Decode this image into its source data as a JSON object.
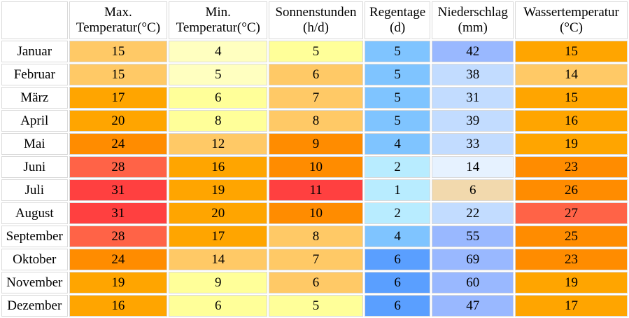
{
  "chart_data": {
    "type": "table",
    "columns": [
      {
        "key": "max_temp",
        "line1": "Max.",
        "line2": "Temperatur(°C)"
      },
      {
        "key": "min_temp",
        "line1": "Min.",
        "line2": "Temperatur(°C)"
      },
      {
        "key": "sun",
        "line1": "Sonnenstunden",
        "line2": "(h/d)"
      },
      {
        "key": "rain_days",
        "line1": "Regentage",
        "line2": "(d)"
      },
      {
        "key": "precip",
        "line1": "Niederschlag",
        "line2": "(mm)"
      },
      {
        "key": "water_temp",
        "line1": "Wassertemperatur",
        "line2": "(°C)"
      }
    ],
    "rows": [
      {
        "month": "Januar",
        "values": [
          "15",
          "4",
          "5",
          "5",
          "42",
          "15"
        ],
        "colors": [
          "#ffc966",
          "#ffffc0",
          "#ffff99",
          "#7fc4ff",
          "#99b8ff",
          "#ffa500"
        ]
      },
      {
        "month": "Februar",
        "values": [
          "15",
          "5",
          "6",
          "5",
          "38",
          "14"
        ],
        "colors": [
          "#ffc966",
          "#ffffc0",
          "#ffc966",
          "#7fc4ff",
          "#c2dcff",
          "#ffc966"
        ]
      },
      {
        "month": "März",
        "values": [
          "17",
          "6",
          "7",
          "5",
          "31",
          "15"
        ],
        "colors": [
          "#ffa500",
          "#ffff99",
          "#ffc966",
          "#7fc4ff",
          "#c2dcff",
          "#ffa500"
        ]
      },
      {
        "month": "April",
        "values": [
          "20",
          "8",
          "8",
          "5",
          "39",
          "16"
        ],
        "colors": [
          "#ffa500",
          "#ffff99",
          "#ffc966",
          "#7fc4ff",
          "#c2dcff",
          "#ffa500"
        ]
      },
      {
        "month": "Mai",
        "values": [
          "24",
          "12",
          "9",
          "4",
          "33",
          "19"
        ],
        "colors": [
          "#ff8c00",
          "#ffc966",
          "#ff8c00",
          "#7fc4ff",
          "#c2dcff",
          "#ffa500"
        ]
      },
      {
        "month": "Juni",
        "values": [
          "28",
          "16",
          "10",
          "2",
          "14",
          "23"
        ],
        "colors": [
          "#ff6347",
          "#ffa500",
          "#ff8c00",
          "#b8ecff",
          "#e6f2ff",
          "#ff8c00"
        ]
      },
      {
        "month": "Juli",
        "values": [
          "31",
          "19",
          "11",
          "1",
          "6",
          "26"
        ],
        "colors": [
          "#ff4040",
          "#ffa500",
          "#ff4040",
          "#b8ecff",
          "#f2d9ad",
          "#ff8c00"
        ]
      },
      {
        "month": "August",
        "values": [
          "31",
          "20",
          "10",
          "2",
          "22",
          "27"
        ],
        "colors": [
          "#ff4040",
          "#ffa500",
          "#ff8c00",
          "#b8ecff",
          "#c2dcff",
          "#ff6347"
        ]
      },
      {
        "month": "September",
        "values": [
          "28",
          "17",
          "8",
          "4",
          "55",
          "25"
        ],
        "colors": [
          "#ff6347",
          "#ffa500",
          "#ffc966",
          "#7fc4ff",
          "#99b8ff",
          "#ff8c00"
        ]
      },
      {
        "month": "Oktober",
        "values": [
          "24",
          "14",
          "7",
          "6",
          "69",
          "23"
        ],
        "colors": [
          "#ff8c00",
          "#ffc966",
          "#ffc966",
          "#5a9fff",
          "#99b8ff",
          "#ff8c00"
        ]
      },
      {
        "month": "November",
        "values": [
          "19",
          "9",
          "6",
          "6",
          "60",
          "19"
        ],
        "colors": [
          "#ffa500",
          "#ffff99",
          "#ffc966",
          "#5a9fff",
          "#99b8ff",
          "#ffa500"
        ]
      },
      {
        "month": "Dezember",
        "values": [
          "16",
          "6",
          "5",
          "6",
          "47",
          "17"
        ],
        "colors": [
          "#ffa500",
          "#ffff99",
          "#ffff99",
          "#5a9fff",
          "#99b8ff",
          "#ffa500"
        ]
      }
    ]
  }
}
